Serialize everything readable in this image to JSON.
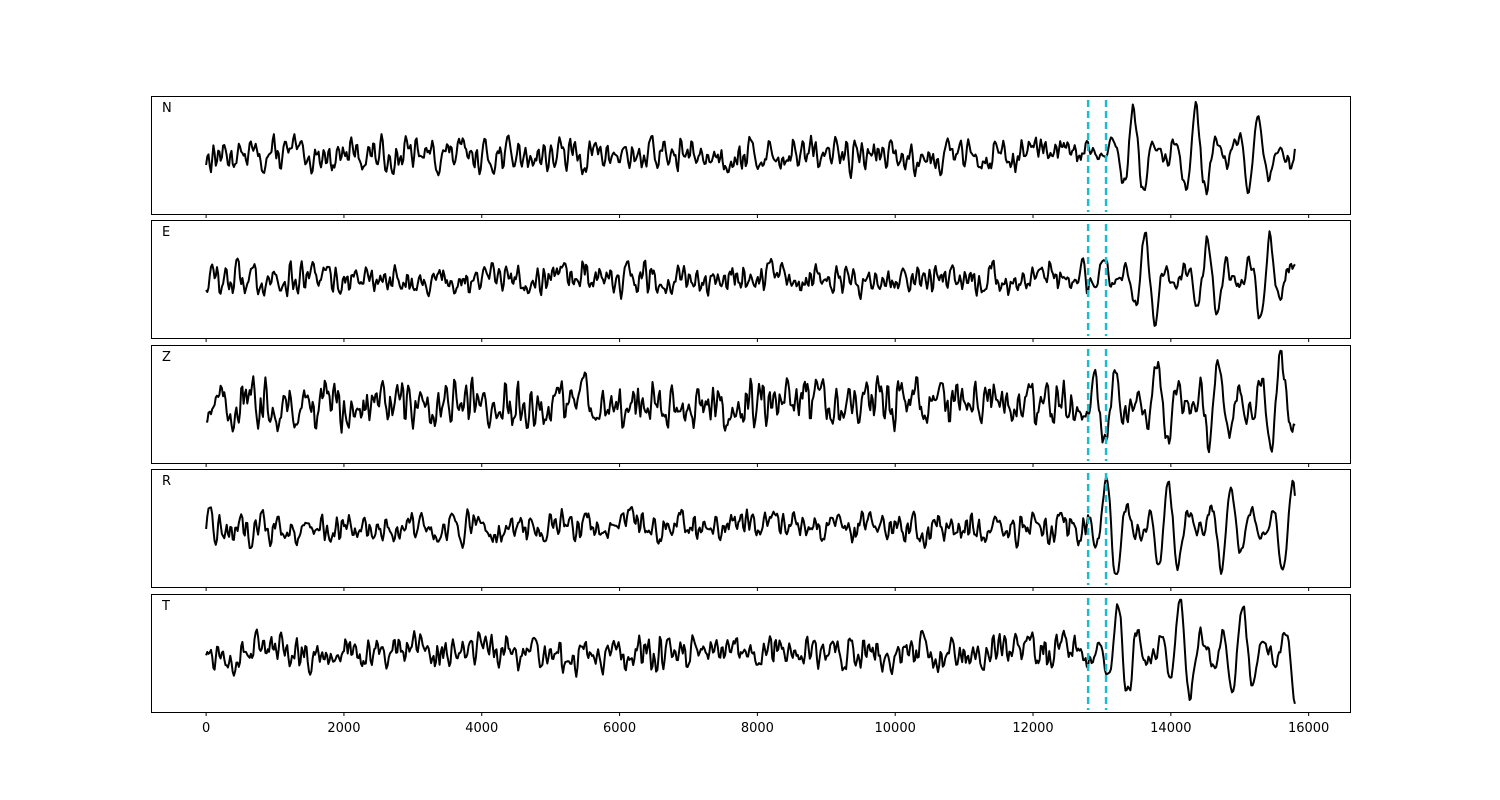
{
  "chart_data": {
    "type": "line",
    "title": "",
    "xlabel": "",
    "ylabel": "",
    "xlim": [
      -800,
      16600
    ],
    "x_ticks": [
      0,
      2000,
      4000,
      6000,
      8000,
      10000,
      12000,
      14000,
      16000
    ],
    "x_tick_labels": [
      "0",
      "2000",
      "4000",
      "6000",
      "8000",
      "10000",
      "12000",
      "14000",
      "16000"
    ],
    "grid": false,
    "shared_x": true,
    "x_range_of_traces": [
      0,
      15800
    ],
    "markers": {
      "style": "dashed vertical lines",
      "color": "#17becf",
      "x": [
        12800,
        13060
      ]
    },
    "trace_color": "#000000",
    "panels": [
      {
        "label": "N",
        "noise_amp": 0.28,
        "signal_amp": 0.85
      },
      {
        "label": "E",
        "noise_amp": 0.28,
        "signal_amp": 0.8
      },
      {
        "label": "Z",
        "noise_amp": 0.4,
        "signal_amp": 0.85
      },
      {
        "label": "R",
        "noise_amp": 0.26,
        "signal_amp": 0.85
      },
      {
        "label": "T",
        "noise_amp": 0.3,
        "signal_amp": 0.95
      }
    ]
  }
}
